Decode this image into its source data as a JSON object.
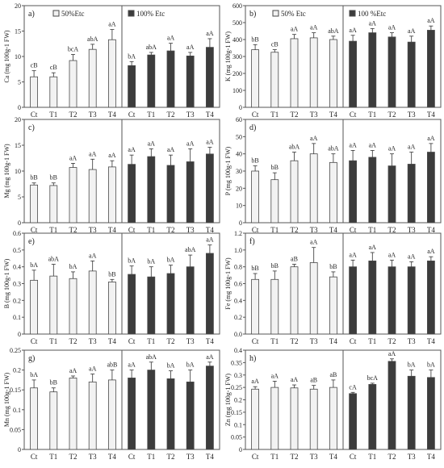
{
  "figure": {
    "legend_light": "50%Etc",
    "legend_dark": "100% Etc",
    "legend_dark_alt": "100 %Etc",
    "colors": {
      "light": "#f2f2f2",
      "dark": "#3c3c3c",
      "stroke": "#4a4a4a"
    }
  },
  "chart_data": [
    {
      "panel": "a)",
      "type": "bar",
      "ylabel": "Ca (mg 100g-1 FW)",
      "ylim": [
        0,
        20
      ],
      "yticks": [
        0,
        5,
        10,
        15,
        20
      ],
      "ytick_labels": [
        "0",
        "5",
        "10",
        "15",
        "20"
      ],
      "categories": [
        "Ct",
        "T1",
        "T2",
        "T3",
        "T4"
      ],
      "series": [
        {
          "name": "50%Etc",
          "values": [
            6,
            6,
            9.2,
            11.4,
            13.3
          ],
          "errors": [
            1.2,
            0.8,
            1.2,
            1.0,
            2.0
          ],
          "labels": [
            "cB",
            "cB",
            "bcA",
            "abA",
            "aA"
          ]
        },
        {
          "name": "100% Etc",
          "values": [
            8.2,
            10.3,
            11.1,
            10.1,
            11.8
          ],
          "errors": [
            0.8,
            0.5,
            1.5,
            0.7,
            1.7
          ],
          "labels": [
            "bA",
            "abA",
            "aA",
            "aA",
            "aA"
          ]
        }
      ]
    },
    {
      "panel": "b)",
      "type": "bar",
      "ylabel": "K (mg 100g-1 FW)",
      "ylim": [
        0,
        600
      ],
      "yticks": [
        0,
        100,
        200,
        300,
        400,
        500,
        600
      ],
      "ytick_labels": [
        "0",
        "100",
        "200",
        "300",
        "400",
        "500",
        "600"
      ],
      "categories": [
        "Ct",
        "T1",
        "T2",
        "T3",
        "T4"
      ],
      "series": [
        {
          "name": "50% Etc",
          "values": [
            340,
            325,
            405,
            410,
            400
          ],
          "errors": [
            30,
            15,
            25,
            30,
            20
          ],
          "labels": [
            "bB",
            "cB",
            "aA",
            "aA",
            "abA"
          ]
        },
        {
          "name": "100 %Etc",
          "values": [
            390,
            440,
            415,
            385,
            455
          ],
          "errors": [
            35,
            25,
            25,
            35,
            25
          ],
          "labels": [
            "aA",
            "aA",
            "aA",
            "aA",
            "aA"
          ]
        }
      ]
    },
    {
      "panel": "c)",
      "type": "bar",
      "ylabel": "Mg (mg 100g-1 FW)",
      "ylim": [
        0,
        20
      ],
      "yticks": [
        0,
        5,
        10,
        15,
        20
      ],
      "ytick_labels": [
        "0",
        "5",
        "10",
        "15",
        "20"
      ],
      "categories": [
        "Ct",
        "T1",
        "T2",
        "T3",
        "T4"
      ],
      "series": [
        {
          "name": "50%Etc",
          "values": [
            7.3,
            7.2,
            10.7,
            10.3,
            10.8
          ],
          "errors": [
            0.4,
            0.5,
            0.8,
            2.0,
            1.2
          ],
          "labels": [
            "bB",
            "bB",
            "aA",
            "aA",
            "aA"
          ]
        },
        {
          "name": "100% Etc",
          "values": [
            11.3,
            12.8,
            11.1,
            11.8,
            13.3
          ],
          "errors": [
            1.8,
            1.5,
            2.0,
            2.5,
            1.3
          ],
          "labels": [
            "aA",
            "aA",
            "aA",
            "aA",
            "aA"
          ]
        }
      ]
    },
    {
      "panel": "d)",
      "type": "bar",
      "ylabel": "P (mg 100g-1 FW)",
      "ylim": [
        0,
        60
      ],
      "yticks": [
        0,
        10,
        20,
        30,
        40,
        50,
        60
      ],
      "ytick_labels": [
        "0",
        "10",
        "20",
        "30",
        "40",
        "50",
        "60"
      ],
      "categories": [
        "Ct",
        "T1",
        "T2",
        "T3",
        "T4"
      ],
      "series": [
        {
          "name": "50%Etc",
          "values": [
            30,
            25,
            36,
            40,
            35
          ],
          "errors": [
            3,
            4,
            5,
            6,
            5
          ],
          "labels": [
            "bB",
            "bB",
            "abA",
            "aA",
            "abA"
          ]
        },
        {
          "name": "100%Etc",
          "values": [
            36,
            38,
            33,
            34,
            41
          ],
          "errors": [
            6,
            4,
            7,
            7,
            5
          ],
          "labels": [
            "aA",
            "aA",
            "aA",
            "aA",
            "aA"
          ]
        }
      ]
    },
    {
      "panel": "e)",
      "type": "bar",
      "ylabel": "B (mg 100g-1 FW)",
      "ylim": [
        0,
        0.6
      ],
      "yticks": [
        0,
        0.1,
        0.2,
        0.3,
        0.4,
        0.5,
        0.6
      ],
      "ytick_labels": [
        "0",
        "0.1",
        "0.2",
        "0.3",
        "0.4",
        "0.5",
        "0.6"
      ],
      "categories": [
        "Ct",
        "T1",
        "T2",
        "T3",
        "T4"
      ],
      "series": [
        {
          "name": "50%Etc",
          "values": [
            0.32,
            0.345,
            0.33,
            0.375,
            0.31
          ],
          "errors": [
            0.06,
            0.07,
            0.04,
            0.06,
            0.015
          ],
          "labels": [
            "bA",
            "abA",
            "bA",
            "aA",
            "bB"
          ]
        },
        {
          "name": "100%Etc",
          "values": [
            0.355,
            0.34,
            0.36,
            0.4,
            0.48
          ],
          "errors": [
            0.05,
            0.06,
            0.05,
            0.07,
            0.05
          ],
          "labels": [
            "bA",
            "bA",
            "bA",
            "abA",
            "aA"
          ]
        }
      ]
    },
    {
      "panel": "f)",
      "type": "bar",
      "ylabel": "Fe (mg 100g-1 FW)",
      "ylim": [
        0,
        1.2
      ],
      "yticks": [
        0,
        0.2,
        0.4,
        0.6,
        0.8,
        1.0,
        1.2
      ],
      "ytick_labels": [
        "0.0",
        "0.2",
        "0.4",
        "0.6",
        "0.8",
        "1.0",
        "1.2"
      ],
      "categories": [
        "Ct",
        "T1",
        "T2",
        "T3",
        "T4"
      ],
      "series": [
        {
          "name": "50%Etc",
          "values": [
            0.65,
            0.65,
            0.8,
            0.85,
            0.68
          ],
          "errors": [
            0.07,
            0.1,
            0.03,
            0.18,
            0.06
          ],
          "labels": [
            "bB",
            "bB",
            "aB",
            "aA",
            "bB"
          ]
        },
        {
          "name": "100%Etc",
          "values": [
            0.8,
            0.87,
            0.8,
            0.8,
            0.87
          ],
          "errors": [
            0.08,
            0.1,
            0.08,
            0.06,
            0.05
          ],
          "labels": [
            "aA",
            "aA",
            "aA",
            "aA",
            "aA"
          ]
        }
      ]
    },
    {
      "panel": "g)",
      "type": "bar",
      "ylabel": "Mn (mg 100g-1 FW)",
      "ylim": [
        0,
        0.25
      ],
      "yticks": [
        0,
        0.05,
        0.1,
        0.15,
        0.2,
        0.25
      ],
      "ytick_labels": [
        "0",
        "0.05",
        "0.1",
        "0.15",
        "0.2",
        "0.25"
      ],
      "categories": [
        "Ct",
        "T1",
        "T2",
        "T3",
        "T4"
      ],
      "series": [
        {
          "name": "50%Etc",
          "values": [
            0.155,
            0.145,
            0.18,
            0.17,
            0.175
          ],
          "errors": [
            0.02,
            0.01,
            0.005,
            0.02,
            0.025
          ],
          "labels": [
            "bA",
            "bB",
            "aA",
            "aA",
            "abB"
          ]
        },
        {
          "name": "100%Etc",
          "values": [
            0.18,
            0.2,
            0.178,
            0.17,
            0.21
          ],
          "errors": [
            0.02,
            0.02,
            0.02,
            0.03,
            0.01
          ],
          "labels": [
            "aA",
            "abA",
            "bA",
            "bA",
            "aA"
          ]
        }
      ]
    },
    {
      "panel": "h)",
      "type": "bar",
      "ylabel": "Zn (mg 100g-1 FW)",
      "ylim": [
        0,
        0.4
      ],
      "yticks": [
        0,
        0.05,
        0.1,
        0.15,
        0.2,
        0.25,
        0.3,
        0.35,
        0.4
      ],
      "ytick_labels": [
        "0",
        "0.05",
        "0.1",
        "0.15",
        "0.2",
        "0.25",
        "0.3",
        "0.35",
        "0.4"
      ],
      "categories": [
        "Ct",
        "T1",
        "T2",
        "T3",
        "T4"
      ],
      "series": [
        {
          "name": "50%Etc",
          "values": [
            0.243,
            0.25,
            0.248,
            0.243,
            0.25
          ],
          "errors": [
            0.01,
            0.025,
            0.012,
            0.015,
            0.03
          ],
          "labels": [
            "aA",
            "aA",
            "aA",
            "aB",
            "aB"
          ]
        },
        {
          "name": "100%Etc",
          "values": [
            0.225,
            0.262,
            0.355,
            0.295,
            0.29
          ],
          "errors": [
            0.005,
            0.005,
            0.01,
            0.025,
            0.03
          ],
          "labels": [
            "cA",
            "bcA",
            "aA",
            "bA",
            "bA"
          ]
        }
      ]
    }
  ]
}
